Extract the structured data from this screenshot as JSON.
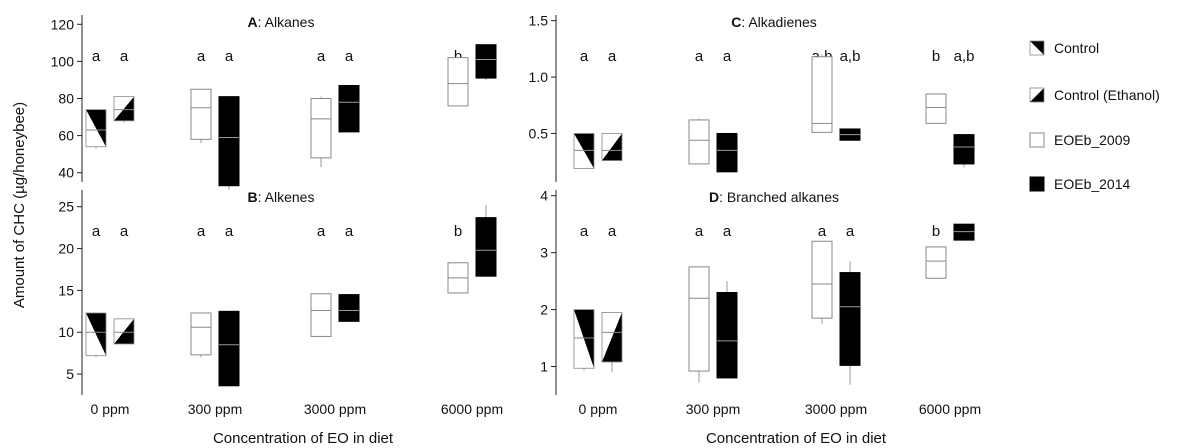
{
  "y_axis_title": "Amount of CHC (µg/honeybee)",
  "x_axis_title": "Concentration of EO in diet",
  "categories": [
    "0 ppm",
    "300 ppm",
    "3000 ppm",
    "6000 ppm"
  ],
  "legend": [
    {
      "label": "Control",
      "style": "control"
    },
    {
      "label": "Control (Ethanol)",
      "style": "ethanol"
    },
    {
      "label": "EOEb_2009",
      "style": "open"
    },
    {
      "label": "EOEb_2014",
      "style": "filled"
    }
  ],
  "colors": {
    "ink": "#000000",
    "paper": "#ffffff",
    "whisker": "#999999"
  },
  "chart_data": [
    {
      "type": "box",
      "panel": "A",
      "title_letter": "A",
      "title_rest": ": Alkanes",
      "categories": [
        "0 ppm",
        "300 ppm",
        "3000 ppm",
        "6000 ppm"
      ],
      "ylim": [
        35,
        125
      ],
      "yticks": [
        40,
        60,
        80,
        100,
        120
      ],
      "ytick_labels": [
        "40",
        "60",
        "80",
        "100",
        "120"
      ],
      "series": [
        {
          "style": "control",
          "boxes": [
            {
              "cat": 0,
              "q1": 54,
              "median": 63,
              "q3": 74,
              "min": 53,
              "max": 74
            }
          ]
        },
        {
          "style": "ethanol",
          "boxes": [
            {
              "cat": 0,
              "q1": 68,
              "median": 74,
              "q3": 81,
              "min": 67,
              "max": 81
            }
          ]
        },
        {
          "style": "open",
          "boxes": [
            {
              "cat": 1,
              "q1": 58,
              "median": 75,
              "q3": 85,
              "min": 56,
              "max": 85
            },
            {
              "cat": 2,
              "q1": 48,
              "median": 69,
              "q3": 80,
              "min": 43,
              "max": 81
            },
            {
              "cat": 3,
              "q1": 76,
              "median": 88,
              "q3": 102,
              "min": 76,
              "max": 102
            }
          ]
        },
        {
          "style": "filled",
          "boxes": [
            {
              "cat": 1,
              "q1": 33,
              "median": 59,
              "q3": 81,
              "min": 31,
              "max": 81
            },
            {
              "cat": 2,
              "q1": 62,
              "median": 78,
              "q3": 87,
              "min": 62,
              "max": 87
            },
            {
              "cat": 3,
              "q1": 91,
              "median": 101,
              "q3": 109,
              "min": 90,
              "max": 109
            }
          ]
        }
      ],
      "significance": [
        [
          "a",
          "a"
        ],
        [
          "a",
          "a"
        ],
        [
          "a",
          "a"
        ],
        [
          "b",
          "b"
        ]
      ]
    },
    {
      "type": "box",
      "panel": "C",
      "title_letter": "C",
      "title_rest": ": Alkadienes",
      "categories": [
        "0 ppm",
        "300 ppm",
        "3000 ppm",
        "6000 ppm"
      ],
      "ylim": [
        0.07,
        1.55
      ],
      "yticks": [
        0.5,
        1.0,
        1.5
      ],
      "ytick_labels": [
        "0.5",
        "1.0",
        "1.5"
      ],
      "series": [
        {
          "style": "control",
          "boxes": [
            {
              "cat": 0,
              "q1": 0.19,
              "median": 0.35,
              "q3": 0.5,
              "min": 0.19,
              "max": 0.5
            }
          ]
        },
        {
          "style": "ethanol",
          "boxes": [
            {
              "cat": 0,
              "q1": 0.26,
              "median": 0.35,
              "q3": 0.5,
              "min": 0.26,
              "max": 0.5
            }
          ]
        },
        {
          "style": "open",
          "boxes": [
            {
              "cat": 1,
              "q1": 0.23,
              "median": 0.44,
              "q3": 0.62,
              "min": 0.23,
              "max": 0.63
            },
            {
              "cat": 2,
              "q1": 0.51,
              "median": 0.59,
              "q3": 1.18,
              "min": 0.51,
              "max": 1.2
            },
            {
              "cat": 3,
              "q1": 0.59,
              "median": 0.73,
              "q3": 0.85,
              "min": 0.59,
              "max": 0.85
            }
          ]
        },
        {
          "style": "filled",
          "boxes": [
            {
              "cat": 1,
              "q1": 0.16,
              "median": 0.35,
              "q3": 0.5,
              "min": 0.16,
              "max": 0.5
            },
            {
              "cat": 2,
              "q1": 0.44,
              "median": 0.49,
              "q3": 0.54,
              "min": 0.44,
              "max": 0.54
            },
            {
              "cat": 3,
              "q1": 0.23,
              "median": 0.38,
              "q3": 0.49,
              "min": 0.2,
              "max": 0.49
            }
          ]
        }
      ],
      "significance": [
        [
          "a",
          "a"
        ],
        [
          "a",
          "a"
        ],
        [
          "a,b",
          "a,b"
        ],
        [
          "b",
          "a,b"
        ]
      ]
    },
    {
      "type": "box",
      "panel": "B",
      "title_letter": "B",
      "title_rest": ": Alkenes",
      "categories": [
        "0 ppm",
        "300 ppm",
        "3000 ppm",
        "6000 ppm"
      ],
      "ylim": [
        2.5,
        27
      ],
      "yticks": [
        5,
        10,
        15,
        20,
        25
      ],
      "ytick_labels": [
        "5",
        "10",
        "15",
        "20",
        "25"
      ],
      "series": [
        {
          "style": "control",
          "boxes": [
            {
              "cat": 0,
              "q1": 7.2,
              "median": 10.0,
              "q3": 12.3,
              "min": 7.0,
              "max": 12.3
            }
          ]
        },
        {
          "style": "ethanol",
          "boxes": [
            {
              "cat": 0,
              "q1": 8.6,
              "median": 10.0,
              "q3": 11.6,
              "min": 8.6,
              "max": 11.6
            }
          ]
        },
        {
          "style": "open",
          "boxes": [
            {
              "cat": 1,
              "q1": 7.3,
              "median": 10.6,
              "q3": 12.3,
              "min": 7.0,
              "max": 12.3
            },
            {
              "cat": 2,
              "q1": 9.5,
              "median": 12.6,
              "q3": 14.6,
              "min": 9.5,
              "max": 14.6
            },
            {
              "cat": 3,
              "q1": 14.7,
              "median": 16.5,
              "q3": 18.3,
              "min": 14.7,
              "max": 18.3
            }
          ]
        },
        {
          "style": "filled",
          "boxes": [
            {
              "cat": 1,
              "q1": 3.6,
              "median": 8.5,
              "q3": 12.5,
              "min": 3.6,
              "max": 12.5
            },
            {
              "cat": 2,
              "q1": 11.3,
              "median": 12.6,
              "q3": 14.5,
              "min": 11.3,
              "max": 14.5
            },
            {
              "cat": 3,
              "q1": 16.7,
              "median": 19.8,
              "q3": 23.7,
              "min": 16.7,
              "max": 25.2
            }
          ]
        }
      ],
      "significance": [
        [
          "a",
          "a"
        ],
        [
          "a",
          "a"
        ],
        [
          "a",
          "a"
        ],
        [
          "b",
          "b"
        ]
      ]
    },
    {
      "type": "box",
      "panel": "D",
      "title_letter": "D",
      "title_rest": ": Branched alkanes",
      "categories": [
        "0 ppm",
        "300 ppm",
        "3000 ppm",
        "6000 ppm"
      ],
      "ylim": [
        0.5,
        4.1
      ],
      "yticks": [
        1,
        2,
        3,
        4
      ],
      "ytick_labels": [
        "1",
        "2",
        "3",
        "4"
      ],
      "series": [
        {
          "style": "control",
          "boxes": [
            {
              "cat": 0,
              "q1": 0.97,
              "median": 1.5,
              "q3": 2.0,
              "min": 0.93,
              "max": 2.0
            }
          ]
        },
        {
          "style": "ethanol",
          "boxes": [
            {
              "cat": 0,
              "q1": 1.08,
              "median": 1.6,
              "q3": 1.95,
              "min": 0.9,
              "max": 1.95
            }
          ]
        },
        {
          "style": "open",
          "boxes": [
            {
              "cat": 1,
              "q1": 0.92,
              "median": 2.2,
              "q3": 2.75,
              "min": 0.72,
              "max": 2.75
            },
            {
              "cat": 2,
              "q1": 1.85,
              "median": 2.45,
              "q3": 3.2,
              "min": 1.75,
              "max": 3.2
            },
            {
              "cat": 3,
              "q1": 2.55,
              "median": 2.85,
              "q3": 3.1,
              "min": 2.55,
              "max": 3.1
            }
          ]
        },
        {
          "style": "filled",
          "boxes": [
            {
              "cat": 1,
              "q1": 0.8,
              "median": 1.45,
              "q3": 2.3,
              "min": 0.8,
              "max": 2.5
            },
            {
              "cat": 2,
              "q1": 1.02,
              "median": 2.05,
              "q3": 2.65,
              "min": 0.68,
              "max": 2.85
            },
            {
              "cat": 3,
              "q1": 3.22,
              "median": 3.37,
              "q3": 3.5,
              "min": 3.22,
              "max": 3.5
            }
          ]
        }
      ],
      "significance": [
        [
          "a",
          "a"
        ],
        [
          "a",
          "a"
        ],
        [
          "a",
          "a"
        ],
        [
          "b",
          "b"
        ]
      ]
    }
  ]
}
